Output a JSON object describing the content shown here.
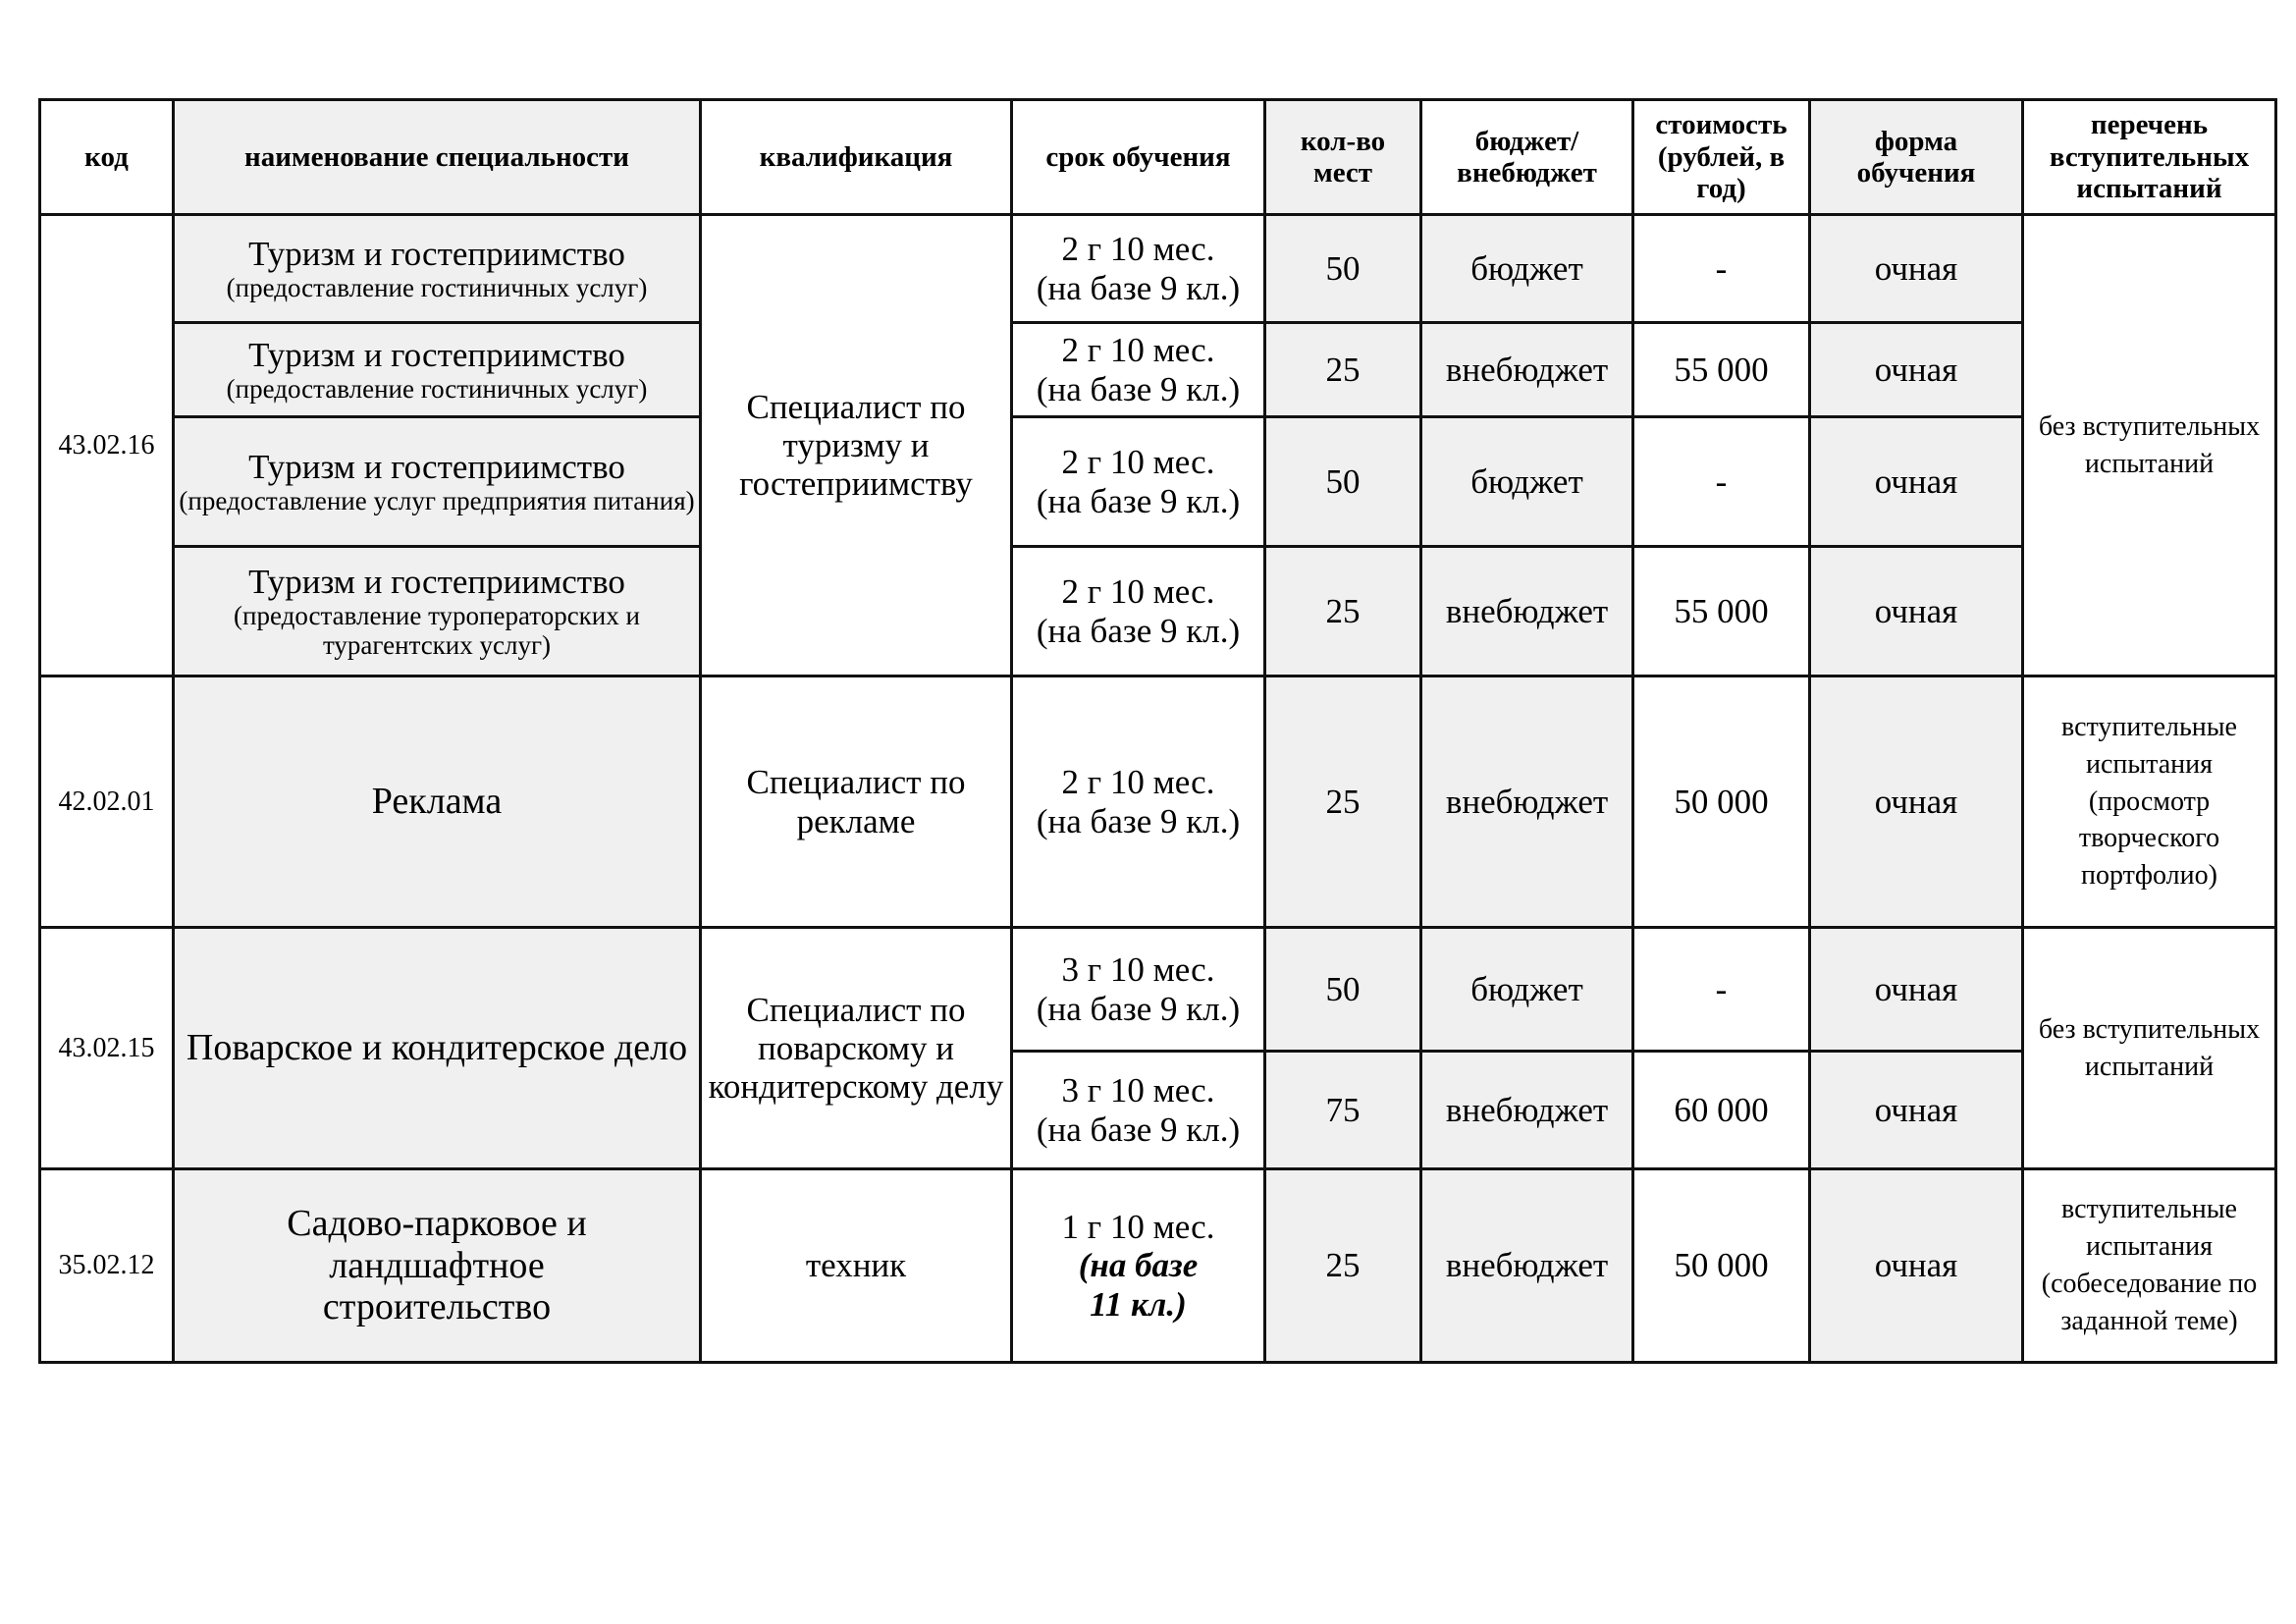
{
  "headers": {
    "code": "код",
    "name": "наименование специальности",
    "qualification": "квалификация",
    "duration": "срок обучения",
    "seats": "кол-во мест",
    "budget": "бюджет/ внебюджет",
    "cost": "стоимость (рублей, в год)",
    "form": "форма обучения",
    "exams": "перечень вступительных испытаний"
  },
  "groups": [
    {
      "code": "43.02.16",
      "qualification": "Специалист по туризму и гостеприимству",
      "exams": "без вступительных испытаний",
      "rows": [
        {
          "name": "Туризм и гостеприимство",
          "sub": "(предоставление гостиничных услуг)",
          "duration": "2 г 10 мес.",
          "base": "(на базе 9 кл.)",
          "seats": "50",
          "budget": "бюджет",
          "cost": "-",
          "form": "очная"
        },
        {
          "name": "Туризм и гостеприимство",
          "sub": "(предоставление гостиничных услуг)",
          "duration": "2 г 10 мес.",
          "base": "(на базе 9 кл.)",
          "seats": "25",
          "budget": "внебюджет",
          "cost": "55 000",
          "form": "очная"
        },
        {
          "name": "Туризм и гостеприимство",
          "sub": "(предоставление услуг предприятия питания)",
          "duration": "2 г 10 мес.",
          "base": "(на базе 9 кл.)",
          "seats": "50",
          "budget": "бюджет",
          "cost": "-",
          "form": "очная"
        },
        {
          "name": "Туризм и гостеприимство",
          "sub": "(предоставление туроператорских и турагентских услуг)",
          "duration": "2 г 10 мес.",
          "base": "(на базе 9 кл.)",
          "seats": "25",
          "budget": "внебюджет",
          "cost": "55 000",
          "form": "очная"
        }
      ]
    },
    {
      "code": "42.02.01",
      "name": "Реклама",
      "qualification": "Специалист по рекламе",
      "exams": "вступительные испытания (просмотр творческого портфолио)",
      "rows": [
        {
          "duration": "2 г 10 мес.",
          "base": "(на базе 9 кл.)",
          "seats": "25",
          "budget": "внебюджет",
          "cost": "50 000",
          "form": "очная"
        }
      ]
    },
    {
      "code": "43.02.15",
      "name": "Поварское и кондитерское дело",
      "qualification": "Специалист по поварскому и кондитерскому делу",
      "exams": "без вступительных испытаний",
      "rows": [
        {
          "duration": "3 г 10 мес.",
          "base": "(на базе 9 кл.)",
          "seats": "50",
          "budget": "бюджет",
          "cost": "-",
          "form": "очная"
        },
        {
          "duration": "3 г 10 мес.",
          "base": "(на базе 9 кл.)",
          "seats": "75",
          "budget": "внебюджет",
          "cost": "60 000",
          "form": "очная"
        }
      ]
    },
    {
      "code": "35.02.12",
      "name": "Садово-парковое и ландшафтное строительство",
      "qualification": "техник",
      "exams": "вступительные испытания (собеседование по заданной теме)",
      "rows": [
        {
          "duration": "1 г 10 мес.",
          "base": "(на базе 11 кл.)",
          "seats": "25",
          "budget": "внебюджет",
          "cost": "50 000",
          "form": "очная"
        }
      ]
    }
  ]
}
